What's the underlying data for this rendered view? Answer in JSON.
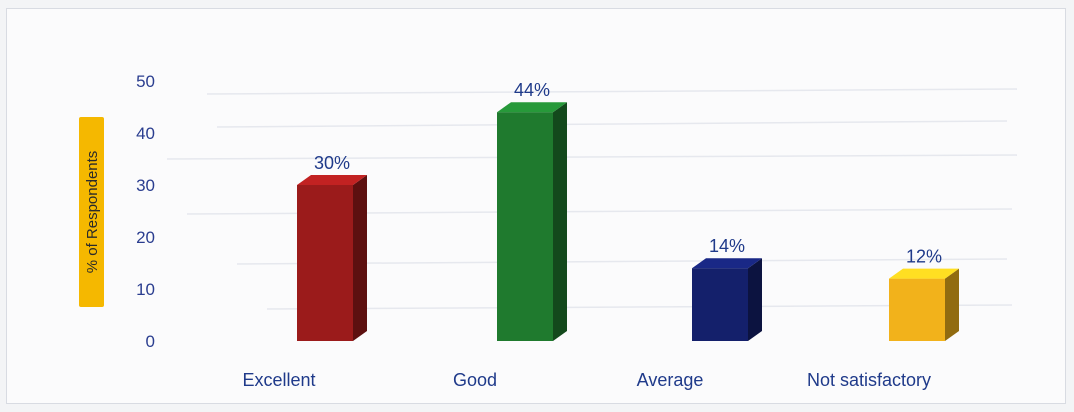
{
  "chart_data": {
    "type": "bar",
    "ylabel": "% of Respondents",
    "categories": [
      "Excellent",
      "Good",
      "Average",
      "Not satisfactory"
    ],
    "values": [
      30,
      44,
      14,
      12
    ],
    "data_labels": [
      "30%",
      "44%",
      "14%",
      "12%"
    ],
    "yticks": [
      "0",
      "10",
      "20",
      "30",
      "40",
      "50"
    ],
    "ylim": [
      0,
      50
    ],
    "grid": false,
    "legend": "none",
    "colors": [
      "#9b1b1b",
      "#1f7a2e",
      "#14206b",
      "#f2b21b"
    ],
    "ylabel_bg": "#f5b800"
  }
}
